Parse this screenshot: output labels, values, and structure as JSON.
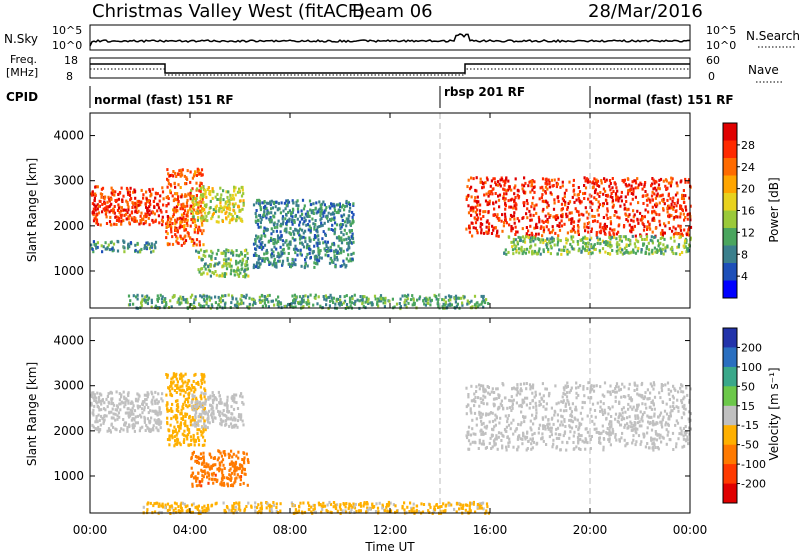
{
  "header": {
    "title": "Christmas Valley West (fitACF)",
    "beam": "Beam 06",
    "date": "28/Mar/2016"
  },
  "noise_panel": {
    "left_label": "N.Sky",
    "right_label": "N.Search",
    "tick_top": "10^5",
    "tick_bottom": "10^0",
    "tick_top_right": "10^5",
    "tick_bottom_right": "10^0"
  },
  "freq_panel": {
    "left_label_1": "Freq.",
    "left_label_2": "[MHz]",
    "left_tick_top": "18",
    "left_tick_bottom": "8",
    "right_label": "Nave",
    "right_tick_top": "60",
    "right_tick_bottom": "0"
  },
  "cpid": {
    "label": "CPID",
    "segments": [
      {
        "text": "normal (fast) 151 RF",
        "start_hour": 0
      },
      {
        "text": "rbsp 201 RF",
        "start_hour": 14
      },
      {
        "text": "normal (fast) 151 RF",
        "start_hour": 20
      }
    ]
  },
  "x_axis": {
    "label": "Time UT",
    "ticks": [
      "00:00",
      "04:00",
      "08:00",
      "12:00",
      "16:00",
      "20:00",
      "00:00"
    ]
  },
  "chart_data": [
    {
      "type": "heatmap",
      "title": "",
      "ylabel": "Slant Range [km]",
      "xlabel": "Time UT",
      "xlim_hours": [
        0,
        24
      ],
      "ylim": [
        180,
        4500
      ],
      "yticks": [
        "1000",
        "2000",
        "3000",
        "4000"
      ],
      "colorbar": {
        "label": "Power [dB]",
        "ticks": [
          "4",
          "8",
          "12",
          "16",
          "20",
          "24",
          "28"
        ],
        "range": [
          0,
          30
        ],
        "colors": [
          "#0000ff",
          "#1d4fb8",
          "#3a7f8c",
          "#4aa55e",
          "#9ac93a",
          "#e8d21e",
          "#ffa500",
          "#ff6b00",
          "#ff2a00",
          "#e00000"
        ]
      },
      "regions": [
        {
          "name": "evening-arc",
          "t": [
            0.0,
            2.9
          ],
          "r": [
            2050,
            2900
          ],
          "value": 25
        },
        {
          "name": "arc-lower-edge",
          "t": [
            0.0,
            2.6
          ],
          "r": [
            1450,
            1700
          ],
          "value": 9
        },
        {
          "name": "rising-arc",
          "t": [
            3.0,
            4.5
          ],
          "r": [
            1600,
            3300
          ],
          "value": 24
        },
        {
          "name": "rising-arc-2",
          "t": [
            4.0,
            6.1
          ],
          "r": [
            2100,
            2900
          ],
          "value": 15
        },
        {
          "name": "low-band",
          "t": [
            4.2,
            6.3
          ],
          "r": [
            900,
            1500
          ],
          "value": 12
        },
        {
          "name": "scatter-morning",
          "t": [
            6.5,
            10.5
          ],
          "r": [
            1100,
            2600
          ],
          "value": 8
        },
        {
          "name": "ground-near",
          "t": [
            1.5,
            16.0
          ],
          "r": [
            200,
            500
          ],
          "value": 10
        },
        {
          "name": "late-arc",
          "t": [
            15.0,
            24.0
          ],
          "r": [
            1800,
            3100
          ],
          "value": 26
        },
        {
          "name": "late-arc-lower",
          "t": [
            16.5,
            24.0
          ],
          "r": [
            1400,
            1800
          ],
          "value": 12
        }
      ]
    },
    {
      "type": "heatmap",
      "title": "",
      "ylabel": "Slant Range [km]",
      "xlabel": "Time UT",
      "xlim_hours": [
        0,
        24
      ],
      "ylim": [
        180,
        4500
      ],
      "yticks": [
        "1000",
        "2000",
        "3000",
        "4000"
      ],
      "colorbar": {
        "label": "Velocity [m s⁻¹]",
        "ticks": [
          "200",
          "100",
          "50",
          "15",
          "-15",
          "-50",
          "-100",
          "-200"
        ],
        "range": [
          -250,
          250
        ],
        "colors": [
          "#2233aa",
          "#2a6fc0",
          "#3aa88a",
          "#6cc84a",
          "#c0c0c0",
          "#ffb000",
          "#ff7a00",
          "#ff3a00",
          "#e00000"
        ]
      },
      "regions": [
        {
          "name": "evening-arc",
          "t": [
            0.0,
            2.9
          ],
          "r": [
            2000,
            2900
          ],
          "value": 0
        },
        {
          "name": "rising-arc",
          "t": [
            3.0,
            4.6
          ],
          "r": [
            1700,
            3300
          ],
          "value": -60
        },
        {
          "name": "rising-arc-2",
          "t": [
            4.0,
            6.1
          ],
          "r": [
            2100,
            2900
          ],
          "value": 0
        },
        {
          "name": "low-band",
          "t": [
            4.0,
            6.3
          ],
          "r": [
            800,
            1600
          ],
          "value": -120
        },
        {
          "name": "ground-near",
          "t": [
            2.0,
            16.0
          ],
          "r": [
            200,
            450
          ],
          "value": -40
        },
        {
          "name": "late-arc",
          "t": [
            15.0,
            24.0
          ],
          "r": [
            1600,
            3100
          ],
          "value": 0
        }
      ]
    }
  ]
}
